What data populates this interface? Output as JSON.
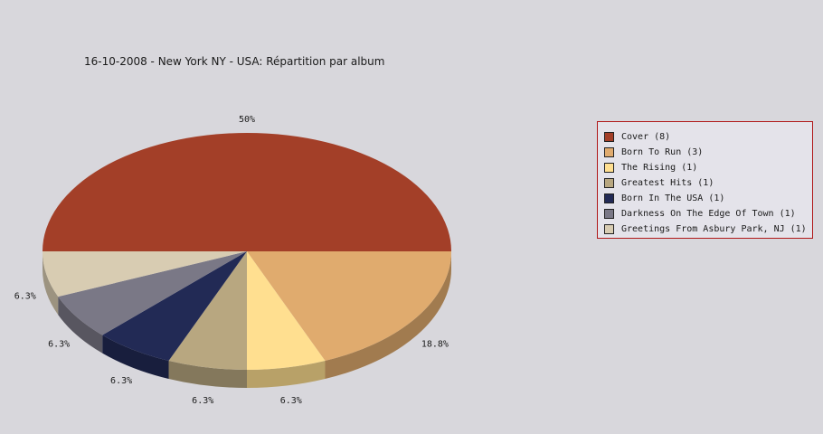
{
  "title": "16-10-2008 - New York NY - USA:  Répartition par album",
  "chart_data": {
    "type": "pie",
    "title": "16-10-2008 - New York NY - USA:  Répartition par album",
    "categories": [
      "Cover",
      "Born To Run",
      "The Rising",
      "Greatest Hits",
      "Born In The USA",
      "Darkness On The Edge Of Town",
      "Greetings From Asbury Park, NJ"
    ],
    "values": [
      8,
      3,
      1,
      1,
      1,
      1,
      1
    ],
    "percent_labels": [
      "50%",
      "18.8%",
      "6.3%",
      "6.3%",
      "6.3%",
      "6.3%",
      "6.3%"
    ],
    "colors": [
      "#a33f28",
      "#e0ab6e",
      "#ffdf90",
      "#b8a780",
      "#222a55",
      "#7a7886",
      "#d8ccb2"
    ],
    "legend": {
      "position": "right",
      "entries": [
        "Cover (8)",
        "Born To Run (3)",
        "The Rising (1)",
        "Greatest Hits (1)",
        "Born In The USA (1)",
        "Darkness On The Edge Of Town (1)",
        "Greetings From Asbury Park, NJ (1)"
      ]
    },
    "style": "3d"
  }
}
